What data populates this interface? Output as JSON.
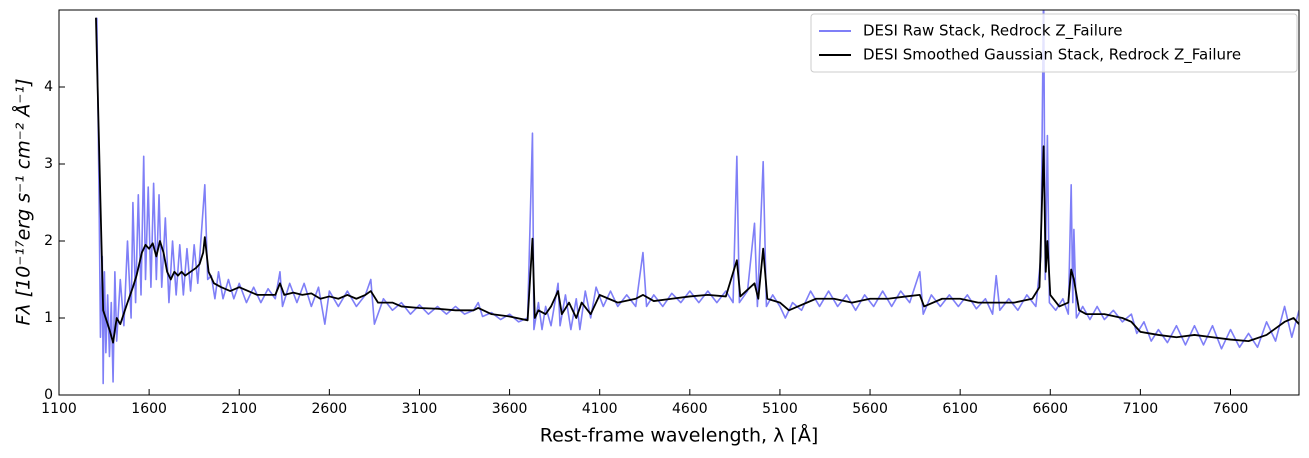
{
  "chart_data": {
    "type": "line",
    "xlabel": "Rest-frame wavelength, λ [Å]",
    "ylabel": "Fλ [10⁻¹⁷erg s⁻¹ cm⁻² Å⁻¹]",
    "xlim": [
      1100,
      7980
    ],
    "ylim": [
      0,
      5
    ],
    "xticks": [
      1100,
      1600,
      2100,
      2600,
      3100,
      3600,
      4100,
      4600,
      5100,
      5600,
      6100,
      6600,
      7100,
      7600
    ],
    "yticks": [
      0,
      1,
      2,
      3,
      4
    ],
    "legend": "upper right",
    "series": [
      {
        "name": "DESI Raw Stack, Redrock Z_Failure",
        "color": "#7f7ff7",
        "x": [
          1310,
          1322,
          1330,
          1340,
          1345,
          1352,
          1360,
          1370,
          1380,
          1390,
          1400,
          1410,
          1420,
          1440,
          1460,
          1480,
          1500,
          1510,
          1525,
          1540,
          1555,
          1570,
          1580,
          1595,
          1610,
          1625,
          1640,
          1655,
          1670,
          1690,
          1710,
          1730,
          1750,
          1770,
          1790,
          1810,
          1830,
          1850,
          1870,
          1890,
          1909,
          1925,
          1945,
          1965,
          1985,
          2010,
          2040,
          2070,
          2100,
          2140,
          2180,
          2220,
          2260,
          2300,
          2326,
          2340,
          2380,
          2420,
          2460,
          2500,
          2540,
          2575,
          2600,
          2650,
          2700,
          2750,
          2800,
          2830,
          2850,
          2900,
          2950,
          3000,
          3050,
          3100,
          3150,
          3200,
          3250,
          3300,
          3350,
          3400,
          3426,
          3450,
          3500,
          3550,
          3600,
          3650,
          3700,
          3727,
          3735,
          3760,
          3780,
          3800,
          3830,
          3869,
          3880,
          3910,
          3940,
          3970,
          3990,
          4020,
          4050,
          4080,
          4120,
          4160,
          4200,
          4250,
          4300,
          4340,
          4360,
          4400,
          4450,
          4500,
          4550,
          4600,
          4650,
          4700,
          4750,
          4800,
          4840,
          4861,
          4875,
          4920,
          4959,
          4975,
          5007,
          5025,
          5060,
          5100,
          5130,
          5170,
          5220,
          5270,
          5320,
          5370,
          5420,
          5470,
          5520,
          5570,
          5620,
          5670,
          5720,
          5770,
          5820,
          5876,
          5895,
          5940,
          5990,
          6040,
          6090,
          6140,
          6190,
          6240,
          6280,
          6300,
          6320,
          6370,
          6420,
          6470,
          6520,
          6548,
          6563,
          6572,
          6584,
          6595,
          6630,
          6670,
          6700,
          6716,
          6725,
          6731,
          6745,
          6780,
          6820,
          6860,
          6900,
          6950,
          7000,
          7050,
          7080,
          7120,
          7160,
          7200,
          7250,
          7300,
          7350,
          7400,
          7450,
          7500,
          7550,
          7600,
          7650,
          7700,
          7750,
          7800,
          7850,
          7900,
          7940,
          7980
        ],
        "values": [
          4.9,
          2.64,
          0.75,
          1.8,
          0.15,
          1.6,
          0.55,
          1.3,
          0.5,
          1.2,
          0.17,
          1.6,
          0.7,
          1.5,
          0.9,
          2.0,
          1.0,
          2.5,
          1.2,
          2.6,
          1.3,
          3.1,
          1.5,
          2.7,
          1.4,
          2.75,
          1.5,
          2.6,
          1.4,
          2.3,
          1.2,
          2.0,
          1.3,
          1.95,
          1.3,
          1.9,
          1.35,
          1.95,
          1.45,
          2.1,
          2.73,
          1.5,
          1.55,
          1.25,
          1.6,
          1.25,
          1.5,
          1.25,
          1.45,
          1.2,
          1.4,
          1.2,
          1.38,
          1.25,
          1.6,
          1.15,
          1.45,
          1.2,
          1.45,
          1.15,
          1.4,
          0.92,
          1.35,
          1.15,
          1.35,
          1.15,
          1.3,
          1.5,
          0.92,
          1.25,
          1.1,
          1.2,
          1.05,
          1.17,
          1.05,
          1.15,
          1.05,
          1.15,
          1.05,
          1.1,
          1.2,
          1.02,
          1.07,
          0.98,
          1.05,
          0.95,
          1.0,
          3.4,
          0.85,
          1.2,
          0.85,
          1.15,
          0.9,
          1.45,
          0.9,
          1.3,
          0.85,
          1.25,
          0.85,
          1.35,
          1.0,
          1.4,
          1.15,
          1.35,
          1.15,
          1.3,
          1.15,
          1.85,
          1.15,
          1.3,
          1.15,
          1.32,
          1.2,
          1.35,
          1.2,
          1.35,
          1.2,
          1.35,
          1.2,
          3.1,
          1.2,
          1.35,
          2.23,
          1.15,
          3.03,
          1.15,
          1.3,
          1.15,
          1.0,
          1.2,
          1.1,
          1.35,
          1.15,
          1.35,
          1.15,
          1.3,
          1.1,
          1.3,
          1.15,
          1.35,
          1.15,
          1.35,
          1.2,
          1.6,
          1.05,
          1.3,
          1.15,
          1.3,
          1.15,
          1.3,
          1.12,
          1.25,
          1.05,
          1.55,
          1.1,
          1.25,
          1.1,
          1.3,
          1.15,
          1.8,
          5.3,
          1.5,
          3.37,
          1.2,
          1.1,
          1.25,
          1.05,
          2.73,
          1.2,
          2.15,
          1.0,
          1.15,
          0.98,
          1.15,
          0.98,
          1.1,
          0.95,
          1.05,
          0.8,
          0.95,
          0.7,
          0.85,
          0.68,
          0.9,
          0.65,
          0.9,
          0.65,
          0.9,
          0.6,
          0.85,
          0.62,
          0.8,
          0.62,
          0.95,
          0.7,
          1.15,
          0.75,
          1.1
        ]
      },
      {
        "name": "DESI Smoothed Gaussian Stack, Redrock Z_Failure",
        "color": "#000000",
        "x": [
          1305,
          1330,
          1345,
          1380,
          1400,
          1420,
          1440,
          1480,
          1510,
          1530,
          1560,
          1580,
          1600,
          1620,
          1640,
          1660,
          1680,
          1700,
          1720,
          1740,
          1760,
          1780,
          1800,
          1830,
          1860,
          1880,
          1900,
          1909,
          1930,
          1960,
          2000,
          2050,
          2100,
          2150,
          2200,
          2300,
          2326,
          2350,
          2400,
          2450,
          2500,
          2550,
          2600,
          2650,
          2700,
          2750,
          2800,
          2830,
          2870,
          2950,
          3000,
          3100,
          3200,
          3300,
          3400,
          3426,
          3500,
          3600,
          3700,
          3727,
          3740,
          3760,
          3800,
          3830,
          3869,
          3890,
          3930,
          3970,
          4000,
          4050,
          4100,
          4150,
          4200,
          4300,
          4340,
          4400,
          4500,
          4600,
          4700,
          4800,
          4861,
          4880,
          4959,
          4980,
          5007,
          5030,
          5100,
          5150,
          5200,
          5300,
          5400,
          5500,
          5600,
          5700,
          5800,
          5876,
          5900,
          6000,
          6100,
          6200,
          6300,
          6400,
          6500,
          6540,
          6563,
          6575,
          6584,
          6600,
          6650,
          6700,
          6716,
          6731,
          6760,
          6800,
          6900,
          7000,
          7050,
          7100,
          7200,
          7300,
          7400,
          7500,
          7600,
          7700,
          7800,
          7900,
          7950,
          7980
        ],
        "values": [
          4.9,
          2.5,
          1.1,
          0.85,
          0.68,
          1.0,
          0.92,
          1.2,
          1.4,
          1.55,
          1.85,
          1.95,
          1.9,
          1.97,
          1.8,
          2.0,
          1.85,
          1.6,
          1.5,
          1.6,
          1.55,
          1.6,
          1.55,
          1.6,
          1.65,
          1.7,
          1.85,
          2.05,
          1.6,
          1.45,
          1.4,
          1.35,
          1.4,
          1.35,
          1.3,
          1.3,
          1.45,
          1.3,
          1.33,
          1.3,
          1.32,
          1.25,
          1.28,
          1.25,
          1.3,
          1.25,
          1.3,
          1.35,
          1.2,
          1.2,
          1.15,
          1.13,
          1.12,
          1.1,
          1.1,
          1.13,
          1.05,
          1.02,
          0.97,
          2.03,
          1.0,
          1.1,
          1.05,
          1.15,
          1.35,
          1.05,
          1.2,
          1.0,
          1.2,
          1.05,
          1.3,
          1.25,
          1.2,
          1.25,
          1.3,
          1.22,
          1.25,
          1.28,
          1.3,
          1.28,
          1.75,
          1.28,
          1.45,
          1.25,
          1.9,
          1.25,
          1.2,
          1.1,
          1.15,
          1.25,
          1.25,
          1.2,
          1.25,
          1.25,
          1.28,
          1.3,
          1.15,
          1.25,
          1.25,
          1.2,
          1.2,
          1.2,
          1.25,
          1.4,
          3.23,
          1.6,
          2.0,
          1.3,
          1.15,
          1.2,
          1.63,
          1.5,
          1.1,
          1.05,
          1.05,
          1.0,
          0.95,
          0.82,
          0.78,
          0.75,
          0.78,
          0.75,
          0.72,
          0.7,
          0.78,
          0.95,
          1.0,
          0.92
        ]
      }
    ]
  }
}
